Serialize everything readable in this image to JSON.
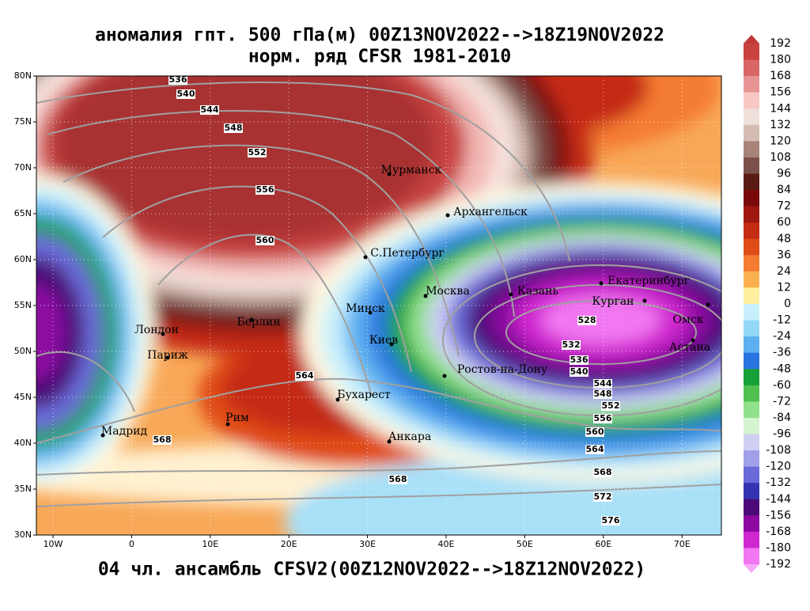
{
  "title": "аномалия гпт. 500 гПа(м) 00Z13NOV2022-->18Z19NOV2022",
  "subtitle": "норм. ряд CFSR 1981-2010",
  "footer": "04 чл. ансамбль CFSV2(00Z12NOV2022-->18Z12NOV2022)",
  "map": {
    "lat_labels": [
      "80N",
      "75N",
      "70N",
      "65N",
      "60N",
      "55N",
      "50N",
      "45N",
      "40N",
      "35N",
      "30N"
    ],
    "lon_labels": [
      "10W",
      "0",
      "10E",
      "20E",
      "30E",
      "40E",
      "50E",
      "60E",
      "70E"
    ],
    "cities": [
      "Мурманск",
      "Архангельск",
      "С.Петербург",
      "Москва",
      "Казань",
      "Екатеринбург",
      "Курган",
      "Омск",
      "Астана",
      "Минск",
      "Берлин",
      "Лондон",
      "Париж",
      "Киев",
      "Ростов-на-Дону",
      "Бухарест",
      "Рим",
      "Мадрид",
      "Анкара"
    ],
    "contour_labels": [
      "536",
      "540",
      "544",
      "548",
      "552",
      "556",
      "560",
      "564",
      "568",
      "568",
      "528",
      "532",
      "536",
      "540",
      "544",
      "548",
      "552",
      "556",
      "560",
      "564",
      "568",
      "572",
      "576"
    ]
  },
  "colorbar": {
    "levels": [
      192,
      180,
      168,
      156,
      144,
      132,
      120,
      108,
      96,
      84,
      72,
      60,
      48,
      36,
      24,
      12,
      0,
      -12,
      -24,
      -36,
      -48,
      -60,
      -72,
      -84,
      -96,
      -108,
      -120,
      -132,
      -144,
      -156,
      -168,
      -180,
      -192
    ],
    "colors": [
      "#c03838",
      "#c8423f",
      "#d86666",
      "#e89494",
      "#f8c8c4",
      "#f0e0da",
      "#d4bcb2",
      "#a88478",
      "#7c504a",
      "#5a1a14",
      "#7a0a0a",
      "#a01812",
      "#c42c14",
      "#e04c18",
      "#f47c30",
      "#fab050",
      "#fff0a0",
      "#c8f0fc",
      "#94d8f8",
      "#5cb0f0",
      "#2a74e0",
      "#18a038",
      "#50c050",
      "#90e08c",
      "#d4f4d0",
      "#cfcff4",
      "#a0a0e8",
      "#6a6ad8",
      "#3434b0",
      "#4c0a78",
      "#8c08a0",
      "#d028d0",
      "#f278f2",
      "#f8a8f8"
    ]
  }
}
